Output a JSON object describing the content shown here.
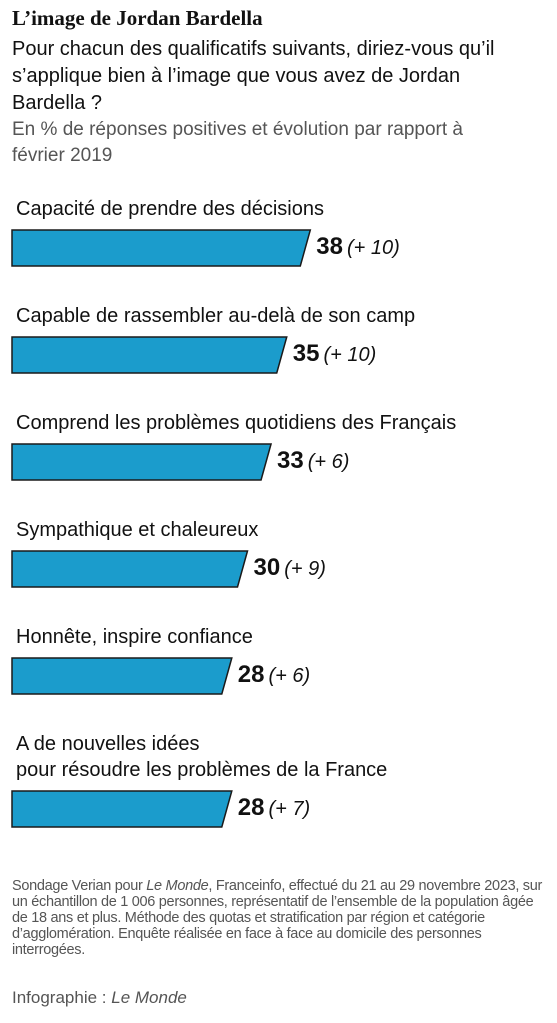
{
  "chart_data": {
    "type": "bar",
    "title": "L’image de Jordan Bardella",
    "subtitle": "Pour chacun des qualificatifs suivants, diriez-vous qu’il s’applique bien à l’image que vous avez de Jordan Bardella ?",
    "unit_note": "En % de réponses positives et évolution par rapport à février 2019",
    "categories": [
      "Capacité de prendre des décisions",
      "Capable de rassembler au-delà de son camp",
      "Comprend les problèmes quotidiens des Français",
      "Sympathique et chaleureux",
      "Honnête, inspire confiance",
      "A de nouvelles idées\npour résoudre les problèmes de la France"
    ],
    "values": [
      38,
      35,
      33,
      30,
      28,
      28
    ],
    "change_labels": [
      "(+ 10)",
      "(+ 10)",
      "(+ 6)",
      "(+ 9)",
      "(+ 6)",
      "(+ 7)"
    ],
    "color": "#1b9ccc",
    "note": [
      "Sondage Verian pour ",
      "Le Monde",
      ", Franceinfo, effectué du 21 au 29 novembre 2023, sur un échantillon de 1 006 personnes, représentatif de l’ensemble de la population âgée de 18 ans et plus. Méthode des quotas et stratification par région et catégorie d’agglomération. Enquête réalisée en face à face au domicile des personnes interrogées."
    ],
    "credit": [
      "Infographie : ",
      "Le Monde"
    ]
  }
}
